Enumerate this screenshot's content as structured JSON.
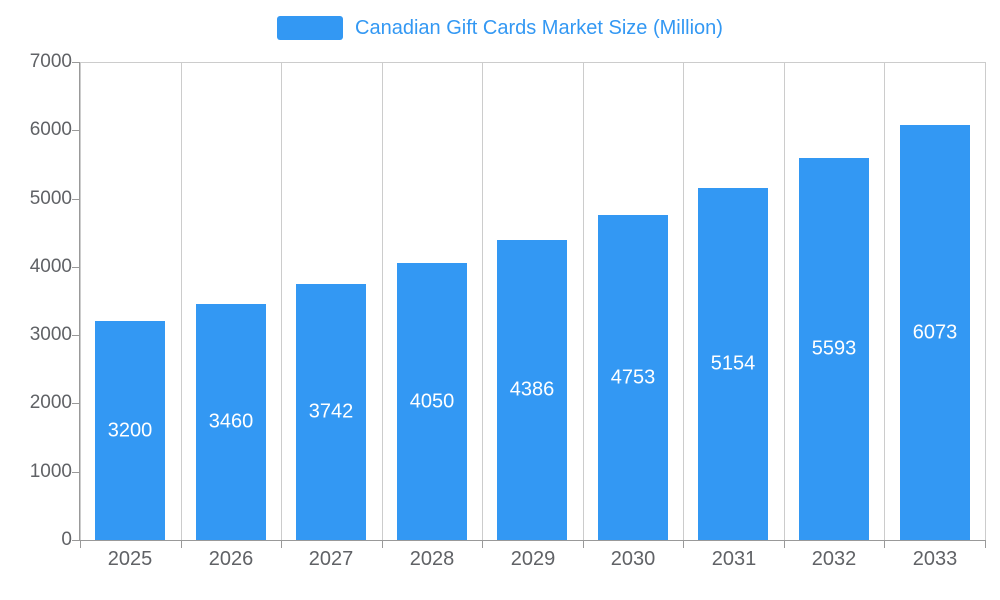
{
  "legend": {
    "label": "Canadian Gift Cards Market Size (Million)",
    "position": "top-center"
  },
  "colors": {
    "bar": "#3398f3",
    "title_text": "#3398f3",
    "axis_line": "#999999",
    "grid_line": "#cccccc",
    "axis_label": "#606266",
    "bar_value_label": "#ffffff",
    "background": "#ffffff"
  },
  "chart_data": {
    "type": "bar",
    "title": "Canadian Gift Cards Market Size (Million)",
    "categories": [
      "2025",
      "2026",
      "2027",
      "2028",
      "2029",
      "2030",
      "2031",
      "2032",
      "2033"
    ],
    "values": [
      3200,
      3460,
      3742,
      4050,
      4386,
      4753,
      5154,
      5593,
      6073
    ],
    "xlabel": "",
    "ylabel": "",
    "ylim": [
      0,
      7000
    ],
    "yticks": [
      0,
      1000,
      2000,
      3000,
      4000,
      5000,
      6000,
      7000
    ],
    "grid": "vertical-only",
    "legend_position": "top-center",
    "bar_color": "#3398f3",
    "value_label_position": "inside-middle"
  }
}
